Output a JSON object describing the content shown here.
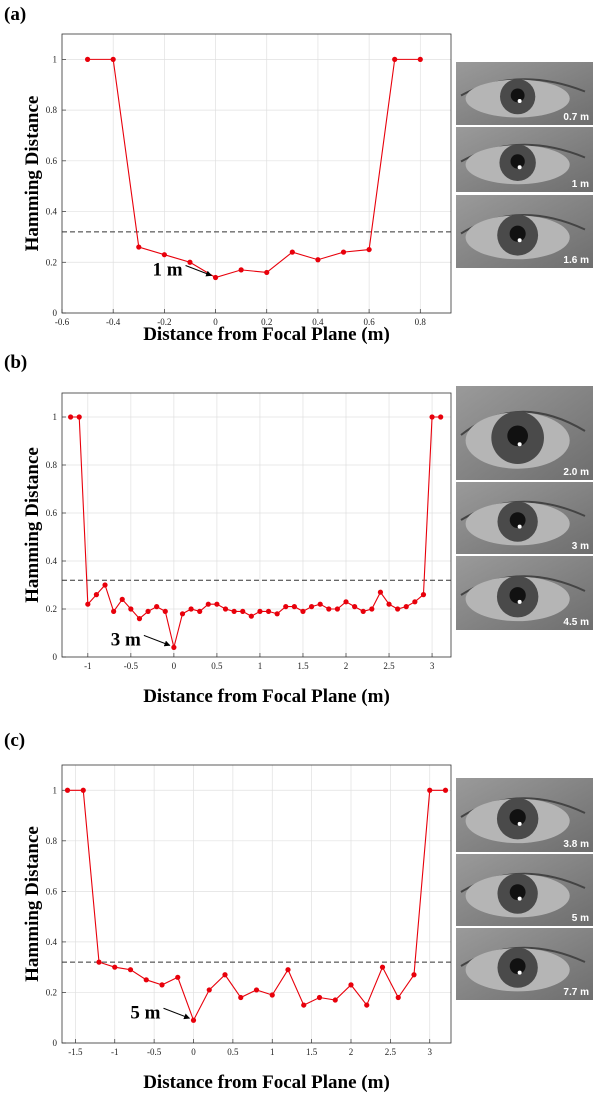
{
  "chart_data": [
    {
      "type": "line",
      "label": "(a)",
      "xlabel": "Distance from Focal Plane (m)",
      "ylabel": "Hamming Distance",
      "x": [
        -0.5,
        -0.4,
        -0.3,
        -0.2,
        -0.1,
        0,
        0.1,
        0.2,
        0.3,
        0.4,
        0.5,
        0.6,
        0.7,
        0.8
      ],
      "values": [
        1,
        1,
        0.26,
        0.23,
        0.2,
        0.14,
        0.17,
        0.16,
        0.24,
        0.21,
        0.24,
        0.25,
        1,
        1
      ],
      "color": "#e8000b",
      "xlim": [
        -0.6,
        0.92
      ],
      "xticks": [
        -0.6,
        -0.4,
        -0.2,
        0,
        0.2,
        0.4,
        0.6,
        0.8
      ],
      "ylim": [
        0,
        1.1
      ],
      "yticks": [
        0,
        0.2,
        0.4,
        0.6,
        0.8,
        1
      ],
      "grid": true,
      "threshold": 0.32,
      "annotation": {
        "text": "1 m",
        "x": 0,
        "y": 0.14
      },
      "photos": [
        "0.7 m",
        "1 m",
        "1.6 m"
      ]
    },
    {
      "type": "line",
      "label": "(b)",
      "xlabel": "Distance from Focal Plane (m)",
      "ylabel": "Hamming Distance",
      "x": [
        -1.2,
        -1.1,
        -1,
        -0.9,
        -0.8,
        -0.7,
        -0.6,
        -0.5,
        -0.4,
        -0.3,
        -0.2,
        -0.1,
        0,
        0.1,
        0.2,
        0.3,
        0.4,
        0.5,
        0.6,
        0.7,
        0.8,
        0.9,
        1,
        1.1,
        1.2,
        1.3,
        1.4,
        1.5,
        1.6,
        1.7,
        1.8,
        1.9,
        2,
        2.1,
        2.2,
        2.3,
        2.4,
        2.5,
        2.6,
        2.7,
        2.8,
        2.9,
        3,
        3.1
      ],
      "values": [
        1,
        1,
        0.22,
        0.26,
        0.3,
        0.19,
        0.24,
        0.2,
        0.16,
        0.19,
        0.21,
        0.19,
        0.04,
        0.18,
        0.2,
        0.19,
        0.22,
        0.22,
        0.2,
        0.19,
        0.19,
        0.17,
        0.19,
        0.19,
        0.18,
        0.21,
        0.21,
        0.19,
        0.21,
        0.22,
        0.2,
        0.2,
        0.23,
        0.21,
        0.19,
        0.2,
        0.27,
        0.22,
        0.2,
        0.21,
        0.23,
        0.26,
        1,
        1
      ],
      "color": "#e8000b",
      "xlim": [
        -1.3,
        3.22
      ],
      "xticks": [
        -1,
        -0.5,
        0,
        0.5,
        1,
        1.5,
        2,
        2.5,
        3
      ],
      "ylim": [
        0,
        1.1
      ],
      "yticks": [
        0,
        0.2,
        0.4,
        0.6,
        0.8,
        1
      ],
      "grid": true,
      "threshold": 0.32,
      "annotation": {
        "text": "3 m",
        "x": 0,
        "y": 0.04
      },
      "photos": [
        "2.0 m",
        "3 m",
        "4.5 m"
      ]
    },
    {
      "type": "line",
      "label": "(c)",
      "xlabel": "Distance from Focal Plane (m)",
      "ylabel": "Hamming Distance",
      "x": [
        -1.6,
        -1.4,
        -1.2,
        -1,
        -0.8,
        -0.6,
        -0.4,
        -0.2,
        0,
        0.2,
        0.4,
        0.6,
        0.8,
        1,
        1.2,
        1.4,
        1.6,
        1.8,
        2,
        2.2,
        2.4,
        2.6,
        2.8,
        3,
        3.2
      ],
      "values": [
        1,
        1,
        0.32,
        0.3,
        0.29,
        0.25,
        0.23,
        0.26,
        0.09,
        0.21,
        0.27,
        0.18,
        0.21,
        0.19,
        0.29,
        0.15,
        0.18,
        0.17,
        0.23,
        0.15,
        0.3,
        0.18,
        0.27,
        1,
        1
      ],
      "color": "#e8000b",
      "xlim": [
        -1.67,
        3.27
      ],
      "xticks": [
        -1.5,
        -1,
        -0.5,
        0,
        0.5,
        1,
        1.5,
        2,
        2.5,
        3
      ],
      "ylim": [
        0,
        1.1
      ],
      "yticks": [
        0,
        0.2,
        0.4,
        0.6,
        0.8,
        1
      ],
      "grid": true,
      "threshold": 0.32,
      "annotation": {
        "text": "5 m",
        "x": 0,
        "y": 0.09
      },
      "photos": [
        "3.8 m",
        "5 m",
        "7.7 m"
      ]
    }
  ]
}
